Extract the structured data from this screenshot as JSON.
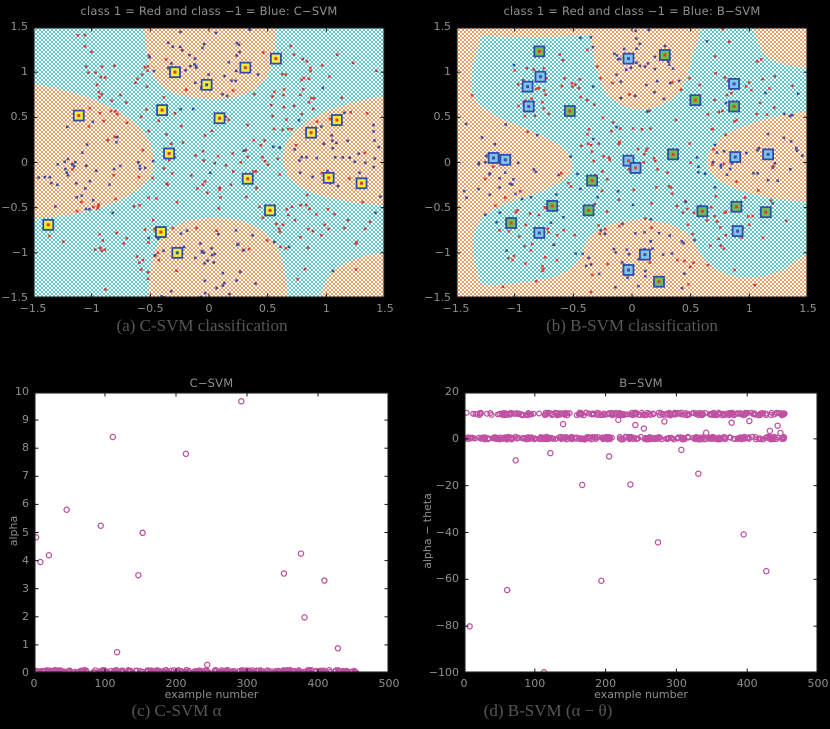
{
  "figure": {
    "background": "#000000"
  },
  "colors": {
    "cyan_region": "#57C7C9",
    "orange_region": "#F09B5F",
    "class1_red": "#E23B33",
    "class_neg1_blue": "#3D4FA5",
    "sv_border_navy": "#2E4DAE",
    "sv_yellow": "#F2EC3B",
    "sv_green": "#6CBE4F",
    "sv_lightblue": "#7FC3E8",
    "scatter_magenta": "#BF51A2",
    "axis_line": "#111111",
    "tick_label": "#8f8f8f",
    "caption_text": "#575757",
    "plot_bg_white": "#ffffff"
  },
  "chart_data": [
    {
      "id": "a",
      "type": "scatter",
      "subtype": "classification-regions",
      "title": "class 1 = Red and class −1 = Blue: C−SVM",
      "caption": "(a) C-SVM classification",
      "xlim": [
        -1.5,
        1.5
      ],
      "ylim": [
        -1.5,
        1.5
      ],
      "grid": false,
      "xticks": [
        {
          "v": -1.5,
          "l": "−1.5"
        },
        {
          "v": -1,
          "l": "−1"
        },
        {
          "v": -0.5,
          "l": "−0.5"
        },
        {
          "v": 0,
          "l": "0"
        },
        {
          "v": 0.5,
          "l": "0.5"
        },
        {
          "v": 1,
          "l": "1"
        },
        {
          "v": 1.5,
          "l": "1.5"
        }
      ],
      "yticks": [
        {
          "v": 1.5,
          "l": "1.5"
        },
        {
          "v": 1,
          "l": "1"
        },
        {
          "v": 0.5,
          "l": "0.5"
        },
        {
          "v": 0,
          "l": "0"
        },
        {
          "v": -0.5,
          "l": "−0.5"
        },
        {
          "v": -1,
          "l": "−1"
        },
        {
          "v": -1.5,
          "l": "−1.5"
        }
      ],
      "orange_region_paths": [
        "M111,0 C113,26 115,42 123,53 C136,68 152,71 182,72 C211,72 223,63 233,51 C241,39 242,19 243,0 Z",
        "M0,57 C31,62 62,70 91,88 C111,100 121,118 121,135 C121,152 108,163 85,174 C60,186 30,190 0,191 Z",
        "M352,69 C322,74 292,82 272,96 C255,108 249,120 250,133 C251,148 261,158 281,166 C306,175 331,177 352,178 Z",
        "M115,271 C117,241 120,220 131,207 C146,193 166,191 183,191 C206,191 222,197 237,210 C250,223 253,248 255,271 Z",
        "M287,271 C291,255 298,244 311,237 C326,229 341,227 352,226 L352,271 Z"
      ],
      "seed": 11,
      "point_clusters": {
        "red": [
          [
            -0.72,
            0.82,
            0.26,
            40
          ],
          [
            0.82,
            0.8,
            0.26,
            38
          ],
          [
            0.02,
            0.02,
            0.3,
            55
          ],
          [
            -0.72,
            -0.78,
            0.28,
            40
          ],
          [
            0.78,
            -0.72,
            0.28,
            40
          ],
          [
            0,
            0,
            0.95,
            22
          ]
        ],
        "blue": [
          [
            0.03,
            1.08,
            0.24,
            38
          ],
          [
            -1.02,
            -0.15,
            0.27,
            40
          ],
          [
            1.05,
            0.08,
            0.25,
            38
          ],
          [
            0.02,
            -1.0,
            0.26,
            40
          ],
          [
            0,
            0,
            0.95,
            20
          ]
        ]
      },
      "support_vectors": [
        {
          "x": -0.29,
          "y": 1.0,
          "fill": "yellow",
          "dot": "red"
        },
        {
          "x": 0.57,
          "y": 1.15,
          "fill": "yellow",
          "dot": "red"
        },
        {
          "x": 0.31,
          "y": 1.05,
          "fill": "yellow",
          "dot": "red"
        },
        {
          "x": -0.02,
          "y": 0.86,
          "fill": "yellow",
          "dot": "blue"
        },
        {
          "x": -1.11,
          "y": 0.52,
          "fill": "yellow",
          "dot": "red"
        },
        {
          "x": -0.4,
          "y": 0.58,
          "fill": "yellow",
          "dot": "red"
        },
        {
          "x": 0.09,
          "y": 0.49,
          "fill": "yellow",
          "dot": "red"
        },
        {
          "x": 1.09,
          "y": 0.47,
          "fill": "yellow",
          "dot": "red"
        },
        {
          "x": 0.87,
          "y": 0.33,
          "fill": "yellow",
          "dot": "red"
        },
        {
          "x": -0.34,
          "y": 0.1,
          "fill": "yellow",
          "dot": "red"
        },
        {
          "x": 0.33,
          "y": -0.18,
          "fill": "yellow",
          "dot": "red"
        },
        {
          "x": 1.02,
          "y": -0.17,
          "fill": "yellow",
          "dot": "red"
        },
        {
          "x": 1.3,
          "y": -0.23,
          "fill": "yellow",
          "dot": "red"
        },
        {
          "x": 0.52,
          "y": -0.53,
          "fill": "yellow",
          "dot": "red"
        },
        {
          "x": -1.37,
          "y": -0.69,
          "fill": "yellow",
          "dot": "red"
        },
        {
          "x": -0.41,
          "y": -0.77,
          "fill": "yellow",
          "dot": "red"
        },
        {
          "x": -0.27,
          "y": -1.0,
          "fill": "yellow",
          "dot": "blue"
        }
      ]
    },
    {
      "id": "b",
      "type": "scatter",
      "subtype": "classification-regions",
      "title": "class 1 = Red and class −1 = Blue: B−SVM",
      "caption": "(b) B-SVM classification",
      "xlim": [
        -1.5,
        1.5
      ],
      "ylim": [
        -1.5,
        1.5
      ],
      "grid": false,
      "xticks": [
        {
          "v": -1.5,
          "l": "−1.5"
        },
        {
          "v": -1,
          "l": "−1"
        },
        {
          "v": -0.5,
          "l": "−0.5"
        },
        {
          "v": 0,
          "l": "0"
        },
        {
          "v": 0.5,
          "l": "0.5"
        },
        {
          "v": 1,
          "l": "1"
        },
        {
          "v": 1.5,
          "l": "1.5"
        }
      ],
      "yticks": [
        {
          "v": 1.5,
          "l": "1.5"
        },
        {
          "v": 1,
          "l": "1"
        },
        {
          "v": 0.5,
          "l": "0.5"
        },
        {
          "v": 0,
          "l": "0"
        },
        {
          "v": -0.5,
          "l": "−0.5"
        },
        {
          "v": -1,
          "l": "−1"
        },
        {
          "v": -1.5,
          "l": "−1.5"
        }
      ],
      "orange_region_paths": [
        "M0,0 L30,0 C21,20 16,36 15,56 C15,76 31,86 56,96 C86,108 113,119 116,136 C118,153 96,161 66,171 C36,181 19,191 17,211 C16,236 23,256 33,271 L0,271 Z",
        "M0,0 L245,0 C243,12 240,20 236,27 C233,52 224,73 200,80 C178,86 162,80 151,67 C142,54 137,30 134,8 C90,11 45,11 0,7 Z",
        "M298,0 C300,15 306,28 319,34 C333,40 346,41 352,41 L352,0 Z",
        "M352,84 C320,88 290,96 270,108 C255,118 250,127 251,137 C253,149 265,157 286,164 C311,172 336,174 352,175 Z",
        "M0,271 L0,257 C25,259 55,258 85,253 C105,250 122,240 127,224 C132,205 151,194 181,193 C211,193 231,201 239,217 C245,231 256,244 276,249 C298,254 318,248 332,240 C342,232 348,228 352,227 L352,271 Z"
      ],
      "seed": 29,
      "point_clusters": {
        "red": [
          [
            -0.72,
            0.82,
            0.26,
            40
          ],
          [
            0.82,
            0.8,
            0.26,
            38
          ],
          [
            0.02,
            0.02,
            0.3,
            55
          ],
          [
            -0.72,
            -0.78,
            0.28,
            40
          ],
          [
            0.78,
            -0.72,
            0.28,
            40
          ],
          [
            0,
            0,
            0.95,
            22
          ]
        ],
        "blue": [
          [
            0.03,
            1.08,
            0.24,
            38
          ],
          [
            -1.02,
            -0.15,
            0.27,
            40
          ],
          [
            1.05,
            0.08,
            0.25,
            38
          ],
          [
            0.02,
            -1.0,
            0.26,
            40
          ],
          [
            0,
            0,
            0.95,
            20
          ]
        ]
      },
      "support_vectors": [
        {
          "x": -0.79,
          "y": 1.23,
          "fill": "green",
          "dot": "red"
        },
        {
          "x": 0.28,
          "y": 1.19,
          "fill": "green",
          "dot": "red"
        },
        {
          "x": 0.54,
          "y": 0.69,
          "fill": "green",
          "dot": "red"
        },
        {
          "x": 0.87,
          "y": 0.62,
          "fill": "green",
          "dot": "red"
        },
        {
          "x": -0.53,
          "y": 0.57,
          "fill": "green",
          "dot": "red"
        },
        {
          "x": 0.35,
          "y": 0.09,
          "fill": "green",
          "dot": "red"
        },
        {
          "x": -0.34,
          "y": -0.2,
          "fill": "green",
          "dot": "red"
        },
        {
          "x": -0.68,
          "y": -0.48,
          "fill": "green",
          "dot": "red"
        },
        {
          "x": -0.37,
          "y": -0.53,
          "fill": "green",
          "dot": "red"
        },
        {
          "x": 0.6,
          "y": -0.54,
          "fill": "green",
          "dot": "red"
        },
        {
          "x": 0.89,
          "y": -0.49,
          "fill": "green",
          "dot": "red"
        },
        {
          "x": 1.14,
          "y": -0.55,
          "fill": "green",
          "dot": "red"
        },
        {
          "x": -1.03,
          "y": -0.67,
          "fill": "green",
          "dot": "red"
        },
        {
          "x": 0.23,
          "y": -1.32,
          "fill": "green",
          "dot": "red"
        },
        {
          "x": -0.03,
          "y": 1.15,
          "fill": "lightblue",
          "dot": "blue"
        },
        {
          "x": -0.78,
          "y": 0.95,
          "fill": "lightblue",
          "dot": "blue"
        },
        {
          "x": -0.89,
          "y": 0.84,
          "fill": "lightblue",
          "dot": "blue"
        },
        {
          "x": -0.88,
          "y": 0.62,
          "fill": "lightblue",
          "dot": "blue"
        },
        {
          "x": 0.87,
          "y": 0.87,
          "fill": "lightblue",
          "dot": "blue"
        },
        {
          "x": -1.18,
          "y": 0.05,
          "fill": "lightblue",
          "dot": "blue"
        },
        {
          "x": -1.08,
          "y": 0.03,
          "fill": "lightblue",
          "dot": "blue"
        },
        {
          "x": -0.03,
          "y": 0.02,
          "fill": "lightblue",
          "dot": "red"
        },
        {
          "x": 0.03,
          "y": -0.06,
          "fill": "lightblue",
          "dot": "red"
        },
        {
          "x": 0.88,
          "y": 0.06,
          "fill": "lightblue",
          "dot": "blue"
        },
        {
          "x": 1.16,
          "y": 0.09,
          "fill": "lightblue",
          "dot": "blue"
        },
        {
          "x": 0.9,
          "y": -0.76,
          "fill": "lightblue",
          "dot": "blue"
        },
        {
          "x": -0.79,
          "y": -0.78,
          "fill": "lightblue",
          "dot": "blue"
        },
        {
          "x": 0.11,
          "y": -1.02,
          "fill": "lightblue",
          "dot": "blue"
        },
        {
          "x": -0.03,
          "y": -1.19,
          "fill": "lightblue",
          "dot": "blue"
        }
      ]
    },
    {
      "id": "c",
      "type": "scatter",
      "subtype": "value-vs-index",
      "title": "C−SVM",
      "caption": "(c) C-SVM α",
      "xlabel": "example number",
      "ylabel": "alpha",
      "xlim": [
        0,
        500
      ],
      "ylim": [
        0,
        10
      ],
      "grid": false,
      "xticks": [
        {
          "v": 0,
          "l": "0"
        },
        {
          "v": 100,
          "l": "100"
        },
        {
          "v": 200,
          "l": "200"
        },
        {
          "v": 300,
          "l": "300"
        },
        {
          "v": 400,
          "l": "400"
        },
        {
          "v": 500,
          "l": "500"
        }
      ],
      "yticks": [
        {
          "v": 0,
          "l": "0"
        },
        {
          "v": 1,
          "l": "1"
        },
        {
          "v": 2,
          "l": "2"
        },
        {
          "v": 3,
          "l": "3"
        },
        {
          "v": 4,
          "l": "4"
        },
        {
          "v": 5,
          "l": "5"
        },
        {
          "v": 6,
          "l": "6"
        },
        {
          "v": 7,
          "l": "7"
        },
        {
          "v": 8,
          "l": "8"
        },
        {
          "v": 9,
          "l": "9"
        },
        {
          "v": 10,
          "l": "10"
        }
      ],
      "points": [
        [
          3,
          4.83
        ],
        [
          9,
          3.95
        ],
        [
          21,
          4.19
        ],
        [
          46,
          5.81
        ],
        [
          94,
          5.24
        ],
        [
          111,
          8.4
        ],
        [
          117,
          0.74
        ],
        [
          147,
          3.48
        ],
        [
          153,
          4.99
        ],
        [
          214,
          7.8
        ],
        [
          244,
          0.29
        ],
        [
          292,
          9.67
        ],
        [
          352,
          3.54
        ],
        [
          376,
          4.25
        ],
        [
          381,
          1.98
        ],
        [
          409,
          3.29
        ],
        [
          428,
          0.88
        ]
      ],
      "dense_bands": [
        {
          "y": 0.06,
          "x0": 1,
          "x1": 455,
          "n": 300,
          "jitter": 0.05
        }
      ],
      "band_seed": 5
    },
    {
      "id": "d",
      "type": "scatter",
      "subtype": "value-vs-index",
      "title": "B−SVM",
      "caption": "(d) B-SVM (α − θ)",
      "xlabel": "example number",
      "ylabel": "alpha − theta",
      "xlim": [
        0,
        500
      ],
      "ylim": [
        -100,
        20
      ],
      "grid": false,
      "xticks": [
        {
          "v": 0,
          "l": "0"
        },
        {
          "v": 100,
          "l": "100"
        },
        {
          "v": 200,
          "l": "200"
        },
        {
          "v": 300,
          "l": "300"
        },
        {
          "v": 400,
          "l": "400"
        },
        {
          "v": 500,
          "l": "500"
        }
      ],
      "yticks": [
        {
          "v": 20,
          "l": "20"
        },
        {
          "v": 0,
          "l": "0"
        },
        {
          "v": -20,
          "l": "−20"
        },
        {
          "v": -40,
          "l": "−40"
        },
        {
          "v": -60,
          "l": "−60"
        },
        {
          "v": -80,
          "l": "−80"
        },
        {
          "v": -100,
          "l": "−100"
        }
      ],
      "points": [
        [
          8,
          -80.1
        ],
        [
          61,
          -64.6
        ],
        [
          73,
          -9.2
        ],
        [
          113,
          -99.7
        ],
        [
          122,
          -6.1
        ],
        [
          140,
          6.3
        ],
        [
          167,
          -19.7
        ],
        [
          194,
          -60.6
        ],
        [
          205,
          -7.5
        ],
        [
          218,
          8.1
        ],
        [
          235,
          -19.5
        ],
        [
          242,
          5.9
        ],
        [
          254,
          4.4
        ],
        [
          274,
          -44.2
        ],
        [
          283,
          7.4
        ],
        [
          307,
          -4.7
        ],
        [
          331,
          -14.9
        ],
        [
          342,
          2.6
        ],
        [
          378,
          6.9
        ],
        [
          395,
          -40.8
        ],
        [
          403,
          7.6
        ],
        [
          427,
          -56.5
        ],
        [
          432,
          3.4
        ],
        [
          443,
          5.6
        ],
        [
          447,
          2.5
        ]
      ],
      "dense_bands": [
        {
          "y": 10.6,
          "x0": 1,
          "x1": 453,
          "n": 260,
          "jitter": 0.6
        },
        {
          "y": 0.3,
          "x0": 1,
          "x1": 453,
          "n": 320,
          "jitter": 0.6
        }
      ],
      "band_seed": 9
    }
  ]
}
